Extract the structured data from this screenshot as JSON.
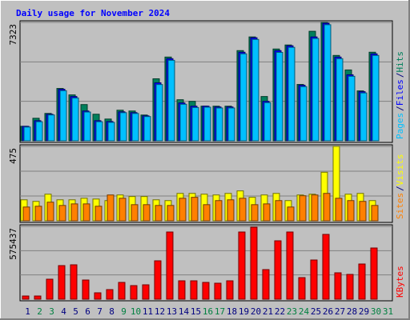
{
  "chart_data": [
    {
      "type": "bar",
      "title": "Daily usage for November 2024",
      "title_color": "#0000ff",
      "ylim": [
        0,
        7323
      ],
      "yticks": [
        7323
      ],
      "legend_separator": "/",
      "series": [
        {
          "name": "Hits",
          "color": "#00805c",
          "values": [
            896,
            1394,
            1693,
            3237,
            2839,
            2241,
            1643,
            1345,
            1892,
            1843,
            1594,
            3835,
            5179,
            2540,
            2440,
            2141,
            2141,
            2141,
            5578,
            6424,
            2739,
            5677,
            5926,
            3486,
            6773,
            7323,
            5279,
            4382,
            3088,
            5478,
            0
          ]
        },
        {
          "name": "Files",
          "color": "#0000ff",
          "values": [
            896,
            1245,
            1643,
            3187,
            2739,
            1843,
            1245,
            1195,
            1793,
            1743,
            1544,
            3586,
            5080,
            2341,
            2141,
            2141,
            2092,
            2092,
            5478,
            6374,
            2440,
            5578,
            5876,
            3436,
            6424,
            7271,
            5179,
            4084,
            3038,
            5378,
            0
          ]
        },
        {
          "name": "Pages",
          "color": "#00c0ff",
          "values": [
            850,
            1180,
            1600,
            3100,
            2650,
            1780,
            1180,
            1140,
            1740,
            1690,
            1500,
            3480,
            4980,
            2260,
            2060,
            2080,
            2030,
            2030,
            5380,
            6270,
            2360,
            5470,
            5780,
            3350,
            6330,
            7180,
            5080,
            3990,
            2960,
            5280,
            0
          ]
        }
      ]
    },
    {
      "type": "bar",
      "ylim": [
        0,
        475
      ],
      "yticks": [
        475
      ],
      "legend_separator": "/",
      "series": [
        {
          "name": "Visits",
          "color": "#ffff00",
          "values": [
            134,
            124,
            170,
            134,
            134,
            144,
            139,
            129,
            165,
            155,
            155,
            134,
            129,
            175,
            175,
            170,
            165,
            175,
            191,
            150,
            165,
            175,
            129,
            165,
            170,
            310,
            475,
            170,
            175,
            129,
            0
          ]
        },
        {
          "name": "Sites",
          "color": "#ff8000",
          "values": [
            88,
            93,
            119,
            98,
            108,
            108,
            93,
            165,
            144,
            103,
            103,
            98,
            98,
            144,
            150,
            103,
            129,
            134,
            144,
            103,
            108,
            129,
            88,
            160,
            165,
            175,
            144,
            129,
            124,
            98,
            0
          ]
        }
      ]
    },
    {
      "type": "bar",
      "ylim": [
        0,
        575437
      ],
      "yticks": [
        575437
      ],
      "legend_separator": "/",
      "categories": [
        "1",
        "2",
        "3",
        "4",
        "5",
        "6",
        "7",
        "8",
        "9",
        "10",
        "11",
        "12",
        "13",
        "14",
        "15",
        "16",
        "17",
        "18",
        "19",
        "20",
        "21",
        "22",
        "23",
        "24",
        "25",
        "26",
        "27",
        "28",
        "29",
        "30",
        "31"
      ],
      "category_colors": [
        "#000080",
        "#008040",
        "#008040",
        "#000080",
        "#000080",
        "#000080",
        "#000080",
        "#000080",
        "#008040",
        "#008040",
        "#000080",
        "#000080",
        "#000080",
        "#000080",
        "#000080",
        "#008040",
        "#008040",
        "#000080",
        "#000080",
        "#000080",
        "#000080",
        "#000080",
        "#008040",
        "#008040",
        "#000080",
        "#000080",
        "#000080",
        "#000080",
        "#000080",
        "#008040",
        "#008040"
      ],
      "series": [
        {
          "name": "KBytes",
          "color": "#ff0000",
          "values": [
            25296,
            25296,
            158100,
            265608,
            271932,
            151776,
            50592,
            75888,
            132804,
            107508,
            113832,
            303552,
            531216,
            145452,
            145452,
            132804,
            126480,
            145452,
            531216,
            569160,
            233988,
            461652,
            531216,
            170748,
            309876,
            512244,
            208692,
            196044,
            278256,
            404736,
            0
          ]
        }
      ]
    }
  ]
}
